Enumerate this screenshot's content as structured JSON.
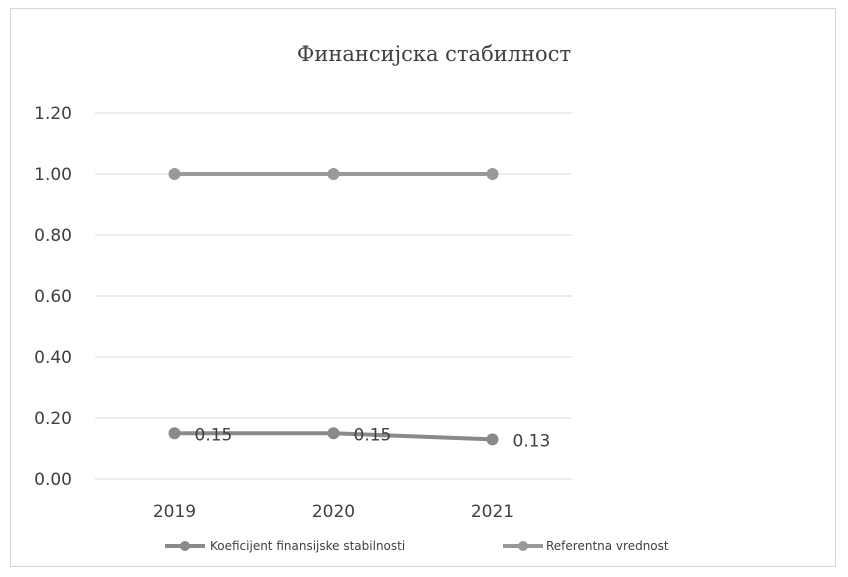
{
  "chart_data": {
    "type": "line",
    "title": "Финансијска стабилност",
    "categories": [
      "2019",
      "2020",
      "2021"
    ],
    "y_ticks": [
      "0.00",
      "0.20",
      "0.40",
      "0.60",
      "0.80",
      "1.00",
      "1.20"
    ],
    "ylim": [
      0,
      1.2
    ],
    "grid": true,
    "legend_position": "bottom",
    "series": [
      {
        "name": "Koeficijent finansijske stabilnosti",
        "values": [
          0.15,
          0.15,
          0.13
        ],
        "data_labels": [
          "0.15",
          "0.15",
          "0.13"
        ],
        "color": "#8a8a8a"
      },
      {
        "name": "Referentna vrednost",
        "values": [
          1.0,
          1.0,
          1.0
        ],
        "color": "#999999"
      }
    ],
    "colors": {
      "grid": "#d9d9d9",
      "text": "#404040"
    }
  }
}
